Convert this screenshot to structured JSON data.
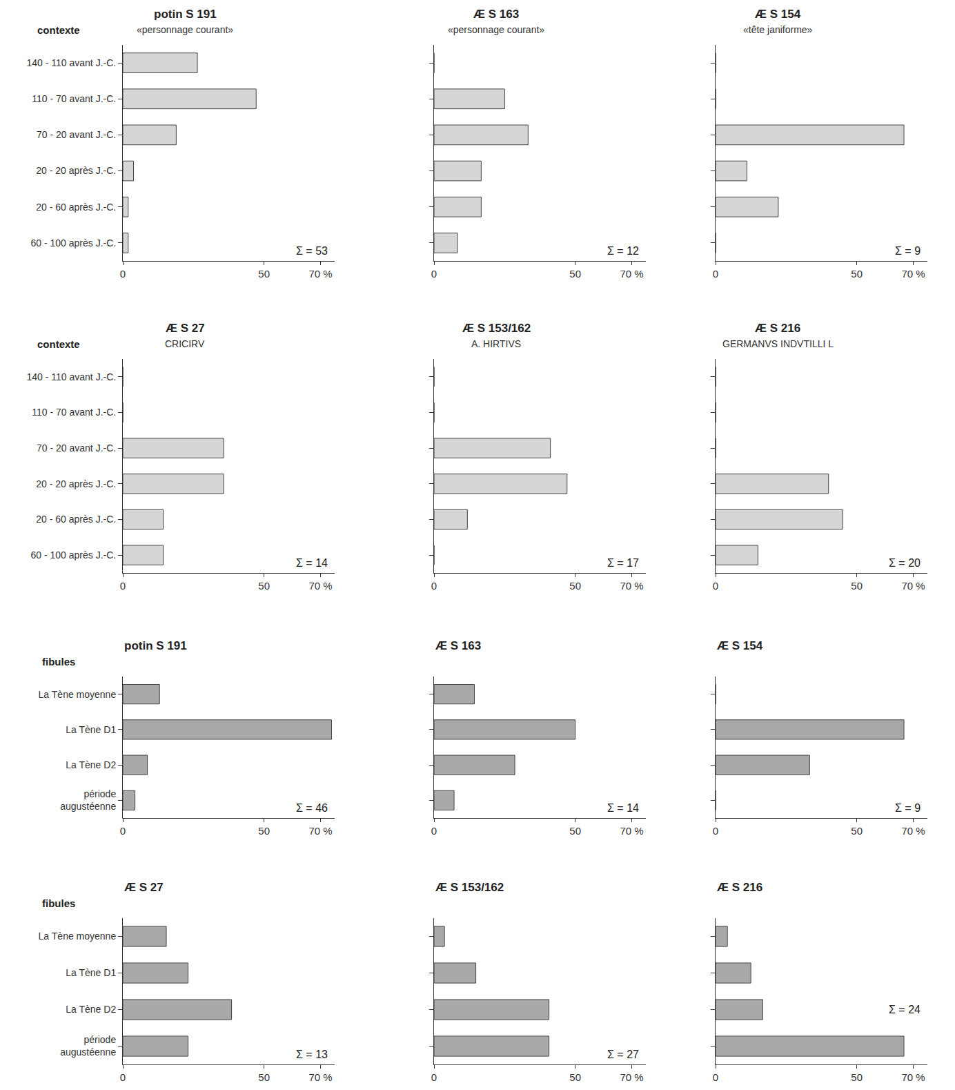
{
  "chart_data": [
    {
      "type": "bar",
      "orientation": "horizontal",
      "title": "potin S 191",
      "subtitle": "«personnage courant»",
      "ylabel": "contexte",
      "annotation": "Σ = 53",
      "categories": [
        "140 - 110 avant J.-C.",
        "110 - 70 avant J.-C.",
        "70 - 20 avant J.-C.",
        "20 - 20 après J.-C.",
        "20 - 60 après J.-C.",
        "60 - 100 après J.-C."
      ],
      "values": [
        26.4,
        47.2,
        18.9,
        3.8,
        1.9,
        1.9
      ],
      "color": "#d6d6d6",
      "xlim": [
        0,
        75
      ],
      "xticks": [
        0,
        50,
        {
          "value": 70,
          "label": "70 %"
        }
      ],
      "tick_labels": true
    },
    {
      "type": "bar",
      "orientation": "horizontal",
      "title": "Æ S 163",
      "subtitle": "«personnage courant»",
      "annotation": "Σ = 12",
      "categories": [
        "140 - 110 avant J.-C.",
        "110 - 70 avant J.-C.",
        "70 - 20 avant J.-C.",
        "20 - 20 après J.-C.",
        "20 - 60 après J.-C.",
        "60 - 100 après J.-C."
      ],
      "values": [
        0,
        25,
        33.3,
        16.7,
        16.7,
        8.3
      ],
      "color": "#d6d6d6",
      "xlim": [
        0,
        75
      ],
      "xticks": [
        0,
        50,
        {
          "value": 70,
          "label": "70 %"
        }
      ],
      "tick_labels": "x"
    },
    {
      "type": "bar",
      "orientation": "horizontal",
      "title": "Æ S 154",
      "subtitle": "«tête janiforme»",
      "annotation": "Σ = 9",
      "categories": [
        "140 - 110 avant J.-C.",
        "110 - 70 avant J.-C.",
        "70 - 20 avant J.-C.",
        "20 - 20 après J.-C.",
        "20 - 60 après J.-C.",
        "60 - 100 après J.-C."
      ],
      "values": [
        0,
        0,
        66.7,
        11.1,
        22.2,
        0
      ],
      "color": "#d6d6d6",
      "xlim": [
        0,
        75
      ],
      "xticks": [
        0,
        50,
        {
          "value": 70,
          "label": "70 %"
        }
      ],
      "tick_labels": "x"
    },
    {
      "type": "bar",
      "orientation": "horizontal",
      "title": "Æ S 27",
      "subtitle": "CRICIRV",
      "ylabel": "contexte",
      "annotation": "Σ = 14",
      "categories": [
        "140 - 110 avant J.-C.",
        "110 - 70 avant J.-C.",
        "70 - 20 avant J.-C.",
        "20 - 20 après J.-C.",
        "20 - 60 après J.-C.",
        "60 - 100 après J.-C."
      ],
      "values": [
        0,
        0,
        35.7,
        35.7,
        14.3,
        14.3
      ],
      "color": "#d6d6d6",
      "xlim": [
        0,
        75
      ],
      "xticks": [
        0,
        50,
        {
          "value": 70,
          "label": "70 %"
        }
      ],
      "tick_labels": true
    },
    {
      "type": "bar",
      "orientation": "horizontal",
      "title": "Æ S 153/162",
      "subtitle": "A. HIRTIVS",
      "annotation": "Σ = 17",
      "categories": [
        "140 - 110 avant J.-C.",
        "110 - 70 avant J.-C.",
        "70 - 20 avant J.-C.",
        "20 - 20 après J.-C.",
        "20 - 60 après J.-C.",
        "60 - 100 après J.-C."
      ],
      "values": [
        0,
        0,
        41.2,
        47.1,
        11.8,
        0
      ],
      "color": "#d6d6d6",
      "xlim": [
        0,
        75
      ],
      "xticks": [
        0,
        50,
        {
          "value": 70,
          "label": "70 %"
        }
      ],
      "tick_labels": "x"
    },
    {
      "type": "bar",
      "orientation": "horizontal",
      "title": "Æ S 216",
      "subtitle": "GERMANVS INDVTILLI L",
      "annotation": "Σ = 20",
      "categories": [
        "140 - 110 avant J.-C.",
        "110 - 70 avant J.-C.",
        "70 - 20 avant J.-C.",
        "20 - 20 après J.-C.",
        "20 - 60 après J.-C.",
        "60 - 100 après J.-C."
      ],
      "values": [
        0,
        0,
        0,
        40,
        45,
        15
      ],
      "color": "#d6d6d6",
      "xlim": [
        0,
        75
      ],
      "xticks": [
        0,
        50,
        {
          "value": 70,
          "label": "70 %"
        }
      ],
      "tick_labels": "x"
    },
    {
      "type": "bar",
      "orientation": "horizontal",
      "title": "potin S 191",
      "ylabel": "fibules",
      "annotation": "Σ = 46",
      "categories": [
        "La Tène moyenne",
        "La Tène D1",
        "La Tène D2",
        "période augustéenne"
      ],
      "values": [
        13,
        73.9,
        8.7,
        4.3
      ],
      "color": "#a9a9a9",
      "xlim": [
        0,
        75
      ],
      "xticks": [
        0,
        50,
        {
          "value": 70,
          "label": "70 %"
        }
      ],
      "tick_labels": true
    },
    {
      "type": "bar",
      "orientation": "horizontal",
      "title": "Æ S 163",
      "annotation": "Σ = 14",
      "categories": [
        "La Tène moyenne",
        "La Tène D1",
        "La Tène D2",
        "période augustéenne"
      ],
      "values": [
        14.3,
        50,
        28.6,
        7.1
      ],
      "color": "#a9a9a9",
      "xlim": [
        0,
        75
      ],
      "xticks": [
        0,
        50,
        {
          "value": 70,
          "label": "70 %"
        }
      ],
      "tick_labels": "x"
    },
    {
      "type": "bar",
      "orientation": "horizontal",
      "title": "Æ S 154",
      "annotation": "Σ = 9",
      "categories": [
        "La Tène moyenne",
        "La Tène D1",
        "La Tène D2",
        "période augustéenne"
      ],
      "values": [
        0,
        66.7,
        33.3,
        0
      ],
      "color": "#a9a9a9",
      "xlim": [
        0,
        75
      ],
      "xticks": [
        0,
        50,
        {
          "value": 70,
          "label": "70 %"
        }
      ],
      "tick_labels": "x"
    },
    {
      "type": "bar",
      "orientation": "horizontal",
      "title": "Æ S 27",
      "ylabel": "fibules",
      "annotation": "Σ = 13",
      "categories": [
        "La Tène moyenne",
        "La Tène D1",
        "La Tène D2",
        "période augustéenne"
      ],
      "values": [
        15.4,
        23.1,
        38.5,
        23.1
      ],
      "color": "#a9a9a9",
      "xlim": [
        0,
        75
      ],
      "xticks": [
        0,
        50,
        {
          "value": 70,
          "label": "70 %"
        }
      ],
      "tick_labels": true
    },
    {
      "type": "bar",
      "orientation": "horizontal",
      "title": "Æ S 153/162",
      "annotation": "Σ = 27",
      "categories": [
        "La Tène moyenne",
        "La Tène D1",
        "La Tène D2",
        "période augustéenne"
      ],
      "values": [
        3.7,
        14.8,
        40.7,
        40.7
      ],
      "color": "#a9a9a9",
      "xlim": [
        0,
        75
      ],
      "xticks": [
        0,
        50,
        {
          "value": 70,
          "label": "70 %"
        }
      ],
      "tick_labels": "x"
    },
    {
      "type": "bar",
      "orientation": "horizontal",
      "title": "Æ S 216",
      "annotation": "Σ = 24",
      "categories": [
        "La Tène moyenne",
        "La Tène D1",
        "La Tène D2",
        "période augustéenne"
      ],
      "values": [
        4.2,
        12.5,
        16.7,
        66.7
      ],
      "color": "#a9a9a9",
      "xlim": [
        0,
        75
      ],
      "xticks": [
        0,
        50,
        {
          "value": 70,
          "label": "70 %"
        }
      ],
      "tick_labels": "x"
    }
  ]
}
